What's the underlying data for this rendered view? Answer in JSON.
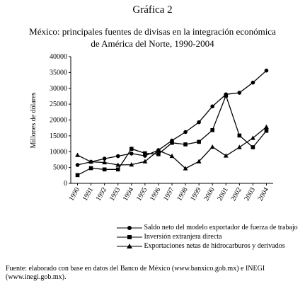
{
  "header": {
    "title": "Gráfica 2",
    "subtitle_line1": "México: principales fuentes de divisas en la integración económica",
    "subtitle_line2": "de América del Norte, 1990-2004"
  },
  "chart_data": {
    "type": "line",
    "ylabel": "Millones de dólares",
    "xlabel": "",
    "ylim": [
      0,
      40000
    ],
    "yticks": [
      "0",
      "5000",
      "10000",
      "15000",
      "20000",
      "25000",
      "30000",
      "35000",
      "40000"
    ],
    "categories": [
      "1990",
      "1991",
      "1992",
      "1993",
      "1994",
      "1995",
      "1996",
      "1997",
      "1998",
      "1999",
      "2000",
      "2001",
      "2002",
      "2003",
      "2004"
    ],
    "grid": false,
    "legend_position": "bottom",
    "series": [
      {
        "name": "Saldo neto del modelo exportador de fuerza de trabajo",
        "marker": "circle",
        "values": [
          5800,
          6800,
          7800,
          8600,
          9400,
          8700,
          10500,
          13500,
          16200,
          19300,
          24300,
          28100,
          28600,
          31800,
          35600
        ]
      },
      {
        "name": "Inversión extranjera directa",
        "marker": "square",
        "values": [
          2600,
          4800,
          4400,
          4400,
          10900,
          9500,
          9200,
          12800,
          12300,
          13100,
          16800,
          27700,
          15100,
          11400,
          16600
        ]
      },
      {
        "name": "Exportaciones netas de hidrocarburos y derivados",
        "marker": "triangle",
        "values": [
          8900,
          6800,
          6600,
          5800,
          5900,
          6900,
          10400,
          8600,
          4700,
          6900,
          11500,
          8700,
          11400,
          14300,
          17800
        ]
      }
    ]
  },
  "footer": {
    "source": "Fuente: elaborado con base en datos del Banco de México (www.banxico.gob.mx) e INEGI (www.inegi.gob.mx)."
  }
}
